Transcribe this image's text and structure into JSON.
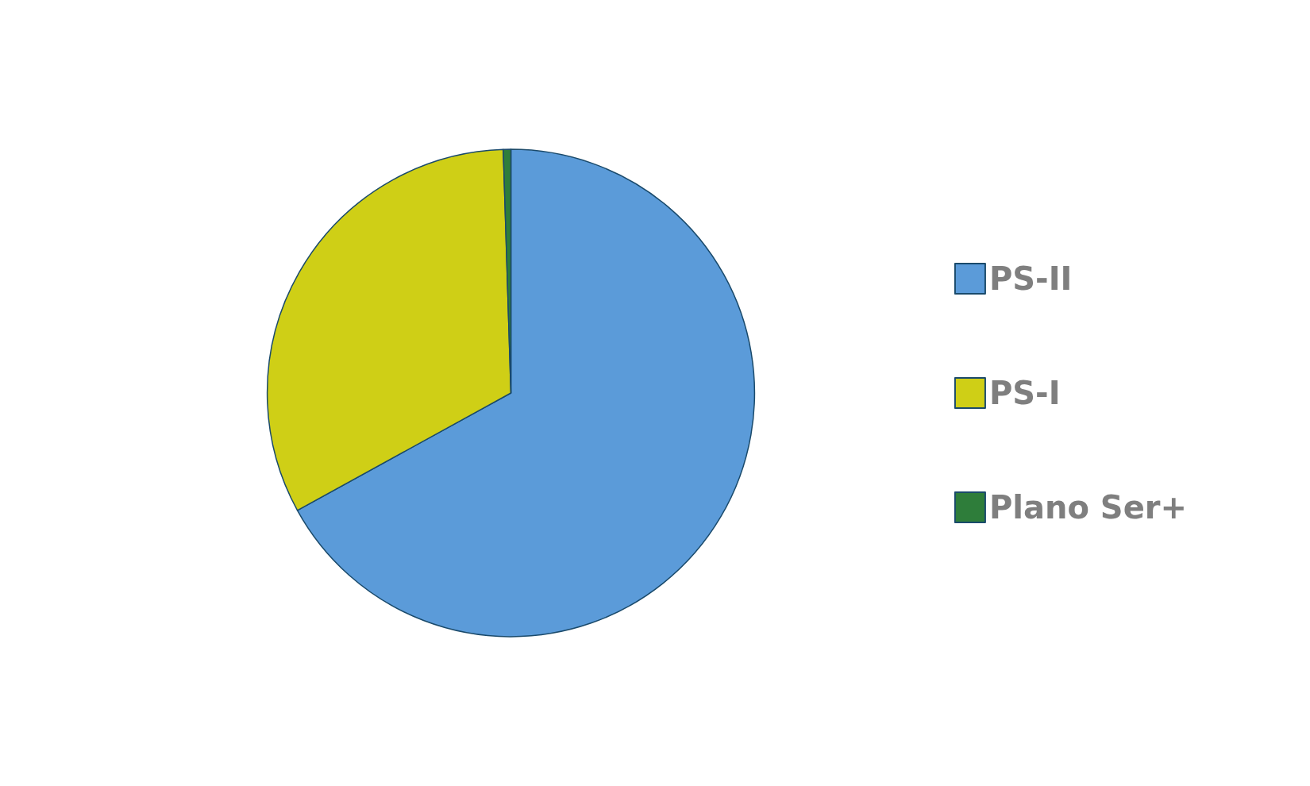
{
  "chart_data": {
    "type": "pie",
    "categories": [
      "PS-II",
      "PS-I",
      "Plano Ser+"
    ],
    "values": [
      67,
      32.5,
      0.5
    ],
    "colors": [
      "#5b9bd9",
      "#cfcf16",
      "#2e7d3a"
    ],
    "legend": "right"
  }
}
